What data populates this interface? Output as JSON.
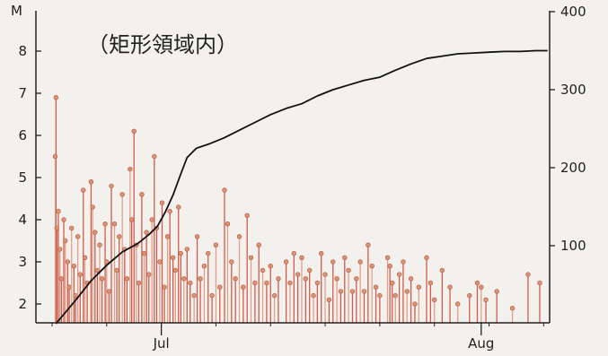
{
  "chart_data": {
    "type": "bar",
    "title": "（矩形領域内）",
    "left_axis": {
      "unit_label": "M",
      "ylim": [
        1.6,
        8.6
      ],
      "ticks": [
        2,
        3,
        4,
        5,
        6,
        7,
        8
      ]
    },
    "right_axis": {
      "ylim": [
        0,
        400
      ],
      "ticks": [
        100,
        200,
        300,
        400
      ]
    },
    "x_axis": {
      "day_range": [
        0,
        64
      ],
      "month_labels": [
        {
          "label": "Jul",
          "day": 14
        },
        {
          "label": "Aug",
          "day": 55
        }
      ]
    },
    "grid": false,
    "legend": "none",
    "colors": {
      "stem": "#cf5c4a",
      "stem_light": "#e0a08a",
      "head": "#d99473",
      "cumulative": "#111111",
      "axis": "#222222"
    },
    "series": [
      {
        "kind": "stems",
        "values": [
          {
            "day": 0.5,
            "m": 6.9
          },
          {
            "day": 0.4,
            "m": 5.5
          },
          {
            "day": 0.8,
            "m": 4.2
          },
          {
            "day": 0.6,
            "m": 3.8
          },
          {
            "day": 1.0,
            "m": 3.3
          },
          {
            "day": 1.2,
            "m": 2.6
          },
          {
            "day": 1.5,
            "m": 4.0
          },
          {
            "day": 1.7,
            "m": 3.5
          },
          {
            "day": 2.0,
            "m": 3.0
          },
          {
            "day": 2.2,
            "m": 2.4
          },
          {
            "day": 2.5,
            "m": 3.8
          },
          {
            "day": 2.8,
            "m": 2.9
          },
          {
            "day": 3.0,
            "m": 2.2
          },
          {
            "day": 3.3,
            "m": 3.6
          },
          {
            "day": 3.6,
            "m": 2.7
          },
          {
            "day": 4.0,
            "m": 4.7
          },
          {
            "day": 4.2,
            "m": 3.1
          },
          {
            "day": 4.5,
            "m": 2.5
          },
          {
            "day": 5.0,
            "m": 4.9
          },
          {
            "day": 5.2,
            "m": 4.3
          },
          {
            "day": 5.5,
            "m": 3.7
          },
          {
            "day": 5.8,
            "m": 2.8
          },
          {
            "day": 6.1,
            "m": 3.4
          },
          {
            "day": 6.4,
            "m": 2.6
          },
          {
            "day": 6.8,
            "m": 3.9
          },
          {
            "day": 7.0,
            "m": 3.0
          },
          {
            "day": 7.3,
            "m": 2.3
          },
          {
            "day": 7.6,
            "m": 4.8
          },
          {
            "day": 8.0,
            "m": 3.9
          },
          {
            "day": 8.3,
            "m": 2.8
          },
          {
            "day": 8.6,
            "m": 3.6
          },
          {
            "day": 9.0,
            "m": 4.6
          },
          {
            "day": 9.3,
            "m": 3.3
          },
          {
            "day": 9.6,
            "m": 2.6
          },
          {
            "day": 10.0,
            "m": 5.2
          },
          {
            "day": 10.2,
            "m": 4.0
          },
          {
            "day": 10.5,
            "m": 6.1
          },
          {
            "day": 10.8,
            "m": 3.4
          },
          {
            "day": 11.1,
            "m": 2.5
          },
          {
            "day": 11.5,
            "m": 4.6
          },
          {
            "day": 11.8,
            "m": 3.2
          },
          {
            "day": 12.1,
            "m": 3.7
          },
          {
            "day": 12.4,
            "m": 2.7
          },
          {
            "day": 12.8,
            "m": 4.0
          },
          {
            "day": 13.1,
            "m": 5.5
          },
          {
            "day": 13.4,
            "m": 3.8
          },
          {
            "day": 13.8,
            "m": 3.0
          },
          {
            "day": 14.1,
            "m": 4.4
          },
          {
            "day": 14.4,
            "m": 2.4
          },
          {
            "day": 14.8,
            "m": 3.6
          },
          {
            "day": 15.1,
            "m": 4.2
          },
          {
            "day": 15.5,
            "m": 3.1
          },
          {
            "day": 15.8,
            "m": 2.8
          },
          {
            "day": 16.2,
            "m": 4.3
          },
          {
            "day": 16.5,
            "m": 3.2
          },
          {
            "day": 16.9,
            "m": 2.6
          },
          {
            "day": 17.3,
            "m": 3.3
          },
          {
            "day": 17.7,
            "m": 2.5
          },
          {
            "day": 18.2,
            "m": 2.2
          },
          {
            "day": 18.6,
            "m": 3.6
          },
          {
            "day": 19.0,
            "m": 2.6
          },
          {
            "day": 19.5,
            "m": 2.9
          },
          {
            "day": 20.0,
            "m": 3.2
          },
          {
            "day": 20.5,
            "m": 2.2
          },
          {
            "day": 21.0,
            "m": 3.4
          },
          {
            "day": 21.5,
            "m": 2.4
          },
          {
            "day": 22.1,
            "m": 4.7
          },
          {
            "day": 22.5,
            "m": 3.9
          },
          {
            "day": 23.0,
            "m": 3.0
          },
          {
            "day": 23.5,
            "m": 2.6
          },
          {
            "day": 24.0,
            "m": 3.6
          },
          {
            "day": 24.5,
            "m": 2.4
          },
          {
            "day": 25.0,
            "m": 4.1
          },
          {
            "day": 25.5,
            "m": 3.1
          },
          {
            "day": 26.0,
            "m": 2.5
          },
          {
            "day": 26.5,
            "m": 3.4
          },
          {
            "day": 27.0,
            "m": 2.8
          },
          {
            "day": 27.5,
            "m": 2.5
          },
          {
            "day": 28.0,
            "m": 2.9
          },
          {
            "day": 28.5,
            "m": 2.2
          },
          {
            "day": 29.0,
            "m": 2.6
          },
          {
            "day": 30.0,
            "m": 3.0
          },
          {
            "day": 30.5,
            "m": 2.5
          },
          {
            "day": 31.0,
            "m": 3.2
          },
          {
            "day": 31.5,
            "m": 2.7
          },
          {
            "day": 32.0,
            "m": 3.1
          },
          {
            "day": 32.5,
            "m": 2.6
          },
          {
            "day": 33.0,
            "m": 2.8
          },
          {
            "day": 33.5,
            "m": 2.2
          },
          {
            "day": 34.0,
            "m": 2.5
          },
          {
            "day": 34.5,
            "m": 3.2
          },
          {
            "day": 35.0,
            "m": 2.7
          },
          {
            "day": 35.5,
            "m": 2.1
          },
          {
            "day": 36.0,
            "m": 3.0
          },
          {
            "day": 36.5,
            "m": 2.6
          },
          {
            "day": 37.0,
            "m": 2.3
          },
          {
            "day": 37.5,
            "m": 3.1
          },
          {
            "day": 38.0,
            "m": 2.8
          },
          {
            "day": 38.5,
            "m": 2.3
          },
          {
            "day": 39.0,
            "m": 2.6
          },
          {
            "day": 39.5,
            "m": 3.0
          },
          {
            "day": 40.0,
            "m": 2.3
          },
          {
            "day": 40.5,
            "m": 3.4
          },
          {
            "day": 41.0,
            "m": 2.9
          },
          {
            "day": 41.5,
            "m": 2.4
          },
          {
            "day": 42.0,
            "m": 2.2
          },
          {
            "day": 43.0,
            "m": 3.1
          },
          {
            "day": 43.3,
            "m": 2.9
          },
          {
            "day": 43.6,
            "m": 2.5
          },
          {
            "day": 44.0,
            "m": 2.2
          },
          {
            "day": 44.5,
            "m": 2.7
          },
          {
            "day": 45.0,
            "m": 3.0
          },
          {
            "day": 45.5,
            "m": 2.3
          },
          {
            "day": 46.0,
            "m": 2.6
          },
          {
            "day": 46.5,
            "m": 2.0
          },
          {
            "day": 47.0,
            "m": 2.4
          },
          {
            "day": 48.0,
            "m": 3.1
          },
          {
            "day": 48.5,
            "m": 2.5
          },
          {
            "day": 49.0,
            "m": 2.1
          },
          {
            "day": 50.0,
            "m": 2.8
          },
          {
            "day": 51.0,
            "m": 2.4
          },
          {
            "day": 52.0,
            "m": 2.0
          },
          {
            "day": 53.5,
            "m": 2.2
          },
          {
            "day": 54.5,
            "m": 2.5
          },
          {
            "day": 55.0,
            "m": 2.4
          },
          {
            "day": 55.6,
            "m": 2.1
          },
          {
            "day": 57.0,
            "m": 2.3
          },
          {
            "day": 59.0,
            "m": 1.9
          },
          {
            "day": 61.0,
            "m": 2.7
          },
          {
            "day": 62.5,
            "m": 2.5
          }
        ]
      },
      {
        "kind": "cumulative_line",
        "axis": "right",
        "points": [
          [
            0.5,
            0
          ],
          [
            1.5,
            12
          ],
          [
            3,
            30
          ],
          [
            5,
            55
          ],
          [
            7,
            75
          ],
          [
            9,
            92
          ],
          [
            11,
            103
          ],
          [
            12.5,
            115
          ],
          [
            13.5,
            125
          ],
          [
            14.5,
            143
          ],
          [
            15.5,
            165
          ],
          [
            16.5,
            192
          ],
          [
            17.3,
            213
          ],
          [
            18.5,
            225
          ],
          [
            20,
            230
          ],
          [
            22,
            238
          ],
          [
            24,
            248
          ],
          [
            26,
            258
          ],
          [
            28,
            268
          ],
          [
            30,
            276
          ],
          [
            32,
            282
          ],
          [
            34,
            292
          ],
          [
            36,
            300
          ],
          [
            38,
            306
          ],
          [
            40,
            312
          ],
          [
            42,
            316
          ],
          [
            44,
            325
          ],
          [
            46,
            333
          ],
          [
            48,
            340
          ],
          [
            50,
            343
          ],
          [
            52,
            346
          ],
          [
            54,
            347
          ],
          [
            56,
            348
          ],
          [
            58,
            349
          ],
          [
            60,
            349
          ],
          [
            62,
            350
          ],
          [
            63.5,
            350
          ]
        ]
      }
    ]
  }
}
